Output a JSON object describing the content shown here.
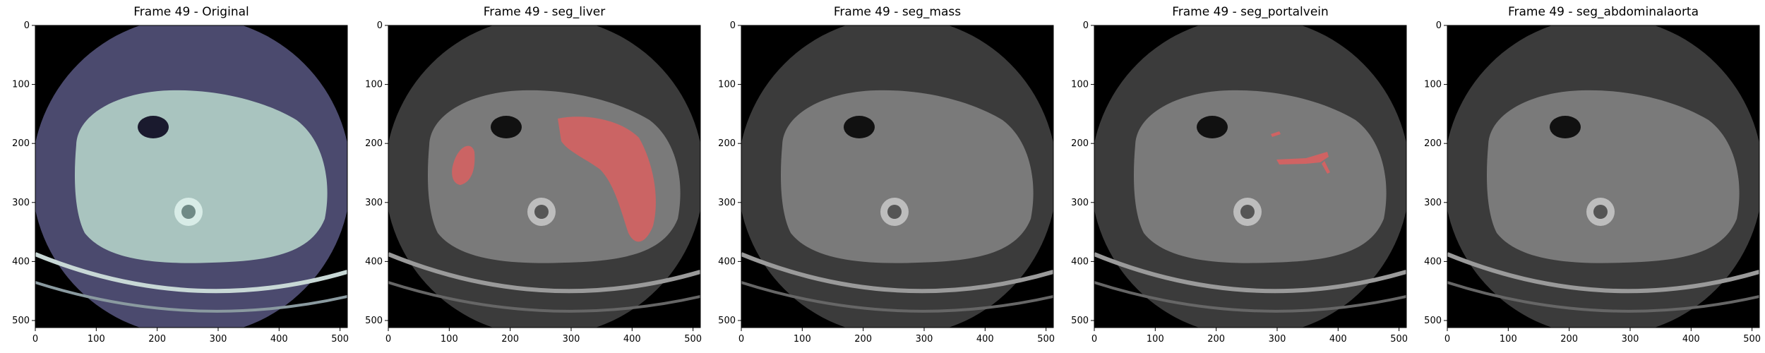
{
  "panels": [
    {
      "title": "Frame 49 - Original",
      "mode": "original",
      "overlay": null
    },
    {
      "title": "Frame 49 - seg_liver",
      "mode": "gray",
      "overlay": "liver"
    },
    {
      "title": "Frame 49 - seg_mass",
      "mode": "gray",
      "overlay": null
    },
    {
      "title": "Frame 49 - seg_portalvein",
      "mode": "gray",
      "overlay": "portalvein"
    },
    {
      "title": "Frame 49 - seg_abdominalaorta",
      "mode": "gray",
      "overlay": null
    }
  ],
  "x_ticks": [
    "0",
    "100",
    "200",
    "300",
    "400",
    "500"
  ],
  "y_ticks": [
    "0",
    "100",
    "200",
    "300",
    "400",
    "500"
  ],
  "x_tick_values": [
    0,
    100,
    200,
    300,
    400,
    500
  ],
  "y_tick_values": [
    0,
    100,
    200,
    300,
    400,
    500
  ],
  "image_range": [
    0,
    512
  ],
  "colors": {
    "original_ring": "#4b4a6e",
    "original_body": "#a9c4bf",
    "gray_ring": "#3b3b3b",
    "gray_body": "#7a7a7a",
    "overlay": "#d96060",
    "background": "#000000"
  }
}
